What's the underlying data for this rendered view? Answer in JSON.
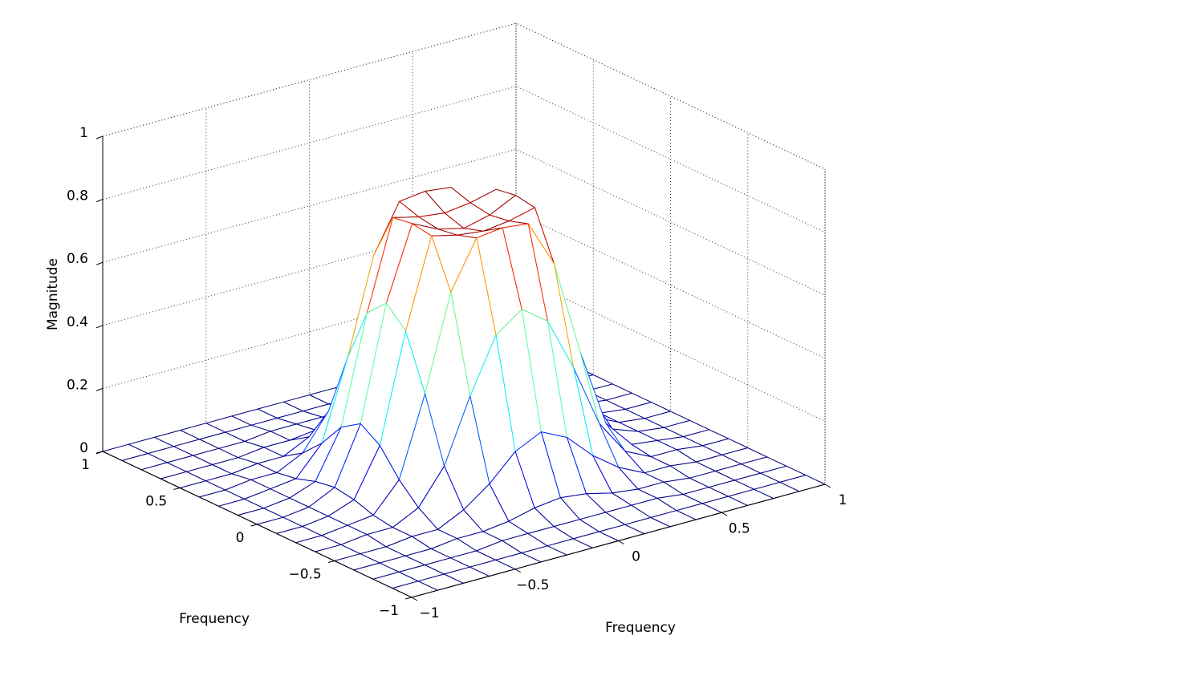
{
  "chart_data": {
    "type": "mesh",
    "xlabel": "Frequency",
    "ylabel": "Frequency",
    "zlabel": "Magnitude",
    "colormap": "jet",
    "grid": true,
    "x": [
      -1,
      -0.875,
      -0.75,
      -0.625,
      -0.5,
      -0.375,
      -0.25,
      -0.125,
      0,
      0.125,
      0.25,
      0.375,
      0.5,
      0.625,
      0.75,
      0.875,
      1
    ],
    "y": [
      -1,
      -0.875,
      -0.75,
      -0.625,
      -0.5,
      -0.375,
      -0.25,
      -0.125,
      0,
      0.125,
      0.25,
      0.375,
      0.5,
      0.625,
      0.75,
      0.875,
      1
    ],
    "z": [
      [
        0,
        0,
        0,
        0,
        0,
        0,
        0,
        0,
        0,
        0,
        0,
        0,
        0,
        0,
        0,
        0,
        0
      ],
      [
        0,
        0,
        0,
        0,
        0,
        0,
        0,
        0,
        0,
        0,
        0,
        0,
        0,
        0,
        0,
        0,
        0
      ],
      [
        0,
        0,
        0,
        0,
        0,
        0.01,
        0.01,
        0.01,
        0.01,
        0.01,
        0.01,
        0.01,
        0,
        0,
        0,
        0,
        0
      ],
      [
        0,
        0,
        0,
        0,
        0.01,
        0.01,
        0.02,
        0.04,
        0.05,
        0.04,
        0.02,
        0.01,
        0.01,
        0,
        0,
        0,
        0
      ],
      [
        0,
        0,
        0,
        0.01,
        0.01,
        0.05,
        0.11,
        0.19,
        0.23,
        0.19,
        0.11,
        0.05,
        0.01,
        0.01,
        0,
        0,
        0
      ],
      [
        0,
        0,
        0.01,
        0.01,
        0.05,
        0.16,
        0.36,
        0.53,
        0.59,
        0.53,
        0.36,
        0.16,
        0.05,
        0.01,
        0.01,
        0,
        0
      ],
      [
        0,
        0,
        0.01,
        0.02,
        0.11,
        0.36,
        0.66,
        0.81,
        0.82,
        0.81,
        0.66,
        0.36,
        0.11,
        0.02,
        0.01,
        0,
        0
      ],
      [
        0,
        0,
        0.01,
        0.04,
        0.19,
        0.53,
        0.81,
        0.79,
        0.78,
        0.79,
        0.81,
        0.53,
        0.19,
        0.04,
        0.01,
        0,
        0
      ],
      [
        0,
        0,
        0.01,
        0.05,
        0.23,
        0.59,
        0.82,
        0.78,
        0.76,
        0.78,
        0.82,
        0.59,
        0.23,
        0.05,
        0.01,
        0,
        0
      ],
      [
        0,
        0,
        0.01,
        0.04,
        0.19,
        0.53,
        0.81,
        0.79,
        0.78,
        0.79,
        0.81,
        0.53,
        0.19,
        0.04,
        0.01,
        0,
        0
      ],
      [
        0,
        0,
        0.01,
        0.02,
        0.11,
        0.36,
        0.66,
        0.81,
        0.82,
        0.81,
        0.66,
        0.36,
        0.11,
        0.02,
        0.01,
        0,
        0
      ],
      [
        0,
        0,
        0.01,
        0.01,
        0.05,
        0.16,
        0.36,
        0.53,
        0.59,
        0.53,
        0.36,
        0.16,
        0.05,
        0.01,
        0.01,
        0,
        0
      ],
      [
        0,
        0,
        0,
        0.01,
        0.01,
        0.05,
        0.11,
        0.19,
        0.23,
        0.19,
        0.11,
        0.05,
        0.01,
        0.01,
        0,
        0,
        0
      ],
      [
        0,
        0,
        0,
        0,
        0.01,
        0.01,
        0.02,
        0.04,
        0.05,
        0.04,
        0.02,
        0.01,
        0.01,
        0,
        0,
        0,
        0
      ],
      [
        0,
        0,
        0,
        0,
        0,
        0.01,
        0.01,
        0.01,
        0.01,
        0.01,
        0.01,
        0.01,
        0,
        0,
        0,
        0,
        0
      ],
      [
        0,
        0,
        0,
        0,
        0,
        0,
        0,
        0,
        0,
        0,
        0,
        0,
        0,
        0,
        0,
        0,
        0
      ],
      [
        0,
        0,
        0,
        0,
        0,
        0,
        0,
        0,
        0,
        0,
        0,
        0,
        0,
        0,
        0,
        0,
        0
      ]
    ],
    "xlim": [
      -1,
      1
    ],
    "ylim": [
      -1,
      1
    ],
    "zlim": [
      0,
      1
    ],
    "xticks": [
      {
        "value": -1,
        "label": "−1"
      },
      {
        "value": -0.5,
        "label": "−0.5"
      },
      0,
      0.5,
      1
    ],
    "yticks": [
      {
        "value": -1,
        "label": "−1"
      },
      {
        "value": -0.5,
        "label": "−0.5"
      },
      0,
      0.5,
      1
    ],
    "zticks": [
      0,
      0.2,
      0.4,
      0.6,
      0.8,
      1
    ]
  }
}
